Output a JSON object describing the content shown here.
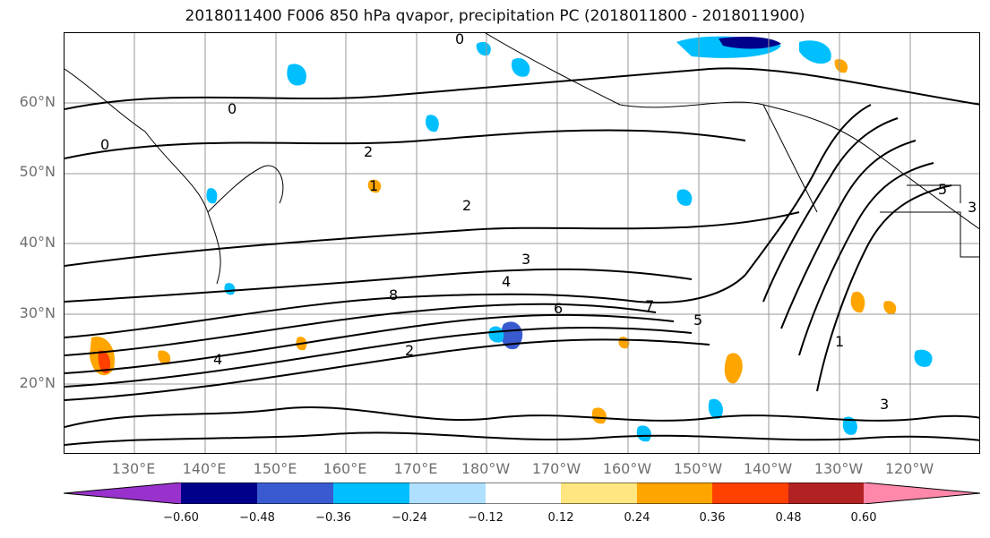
{
  "title": "2018011400 F006 850 hPa qvapor, precipitation PC (2018011800 - 2018011900)",
  "map": {
    "lat_labels": [
      "60°N",
      "50°N",
      "40°N",
      "30°N",
      "20°N"
    ],
    "lon_labels": [
      "130°E",
      "140°E",
      "150°E",
      "160°E",
      "170°E",
      "180°W",
      "170°W",
      "160°W",
      "150°W",
      "140°W",
      "130°W",
      "120°W"
    ],
    "contour_labels": [
      "0",
      "0",
      "0",
      "2",
      "1",
      "2",
      "3",
      "4",
      "8",
      "6",
      "7",
      "5",
      "4",
      "2",
      "1",
      "3",
      "5",
      "3"
    ]
  },
  "colorbar": {
    "colors": [
      "#9932cc",
      "#00008b",
      "#3a5bd0",
      "#00bfff",
      "#b0e0ff",
      "#ffffff",
      "#ffe680",
      "#ffa500",
      "#ff4000",
      "#b22222",
      "#ff88aa"
    ],
    "tick_labels": [
      "−0.60",
      "−0.48",
      "−0.36",
      "−0.24",
      "−0.12",
      "0.12",
      "0.24",
      "0.36",
      "0.48",
      "0.60"
    ]
  }
}
